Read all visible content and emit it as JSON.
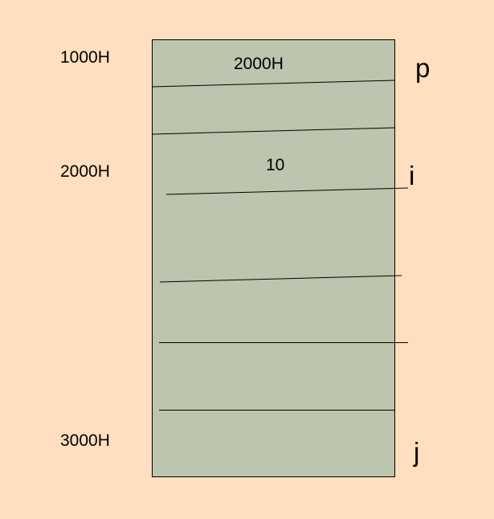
{
  "colors": {
    "background": "#ffdfbf",
    "memory_block": "#bcc5ad",
    "border": "#000000"
  },
  "address_labels": {
    "a1000": "1000H",
    "a2000": "2000H",
    "a3000": "3000H"
  },
  "cell_values": {
    "p_value": "2000H",
    "i_value": "10"
  },
  "variable_labels": {
    "p": "p",
    "i": "i",
    "j": "j"
  }
}
